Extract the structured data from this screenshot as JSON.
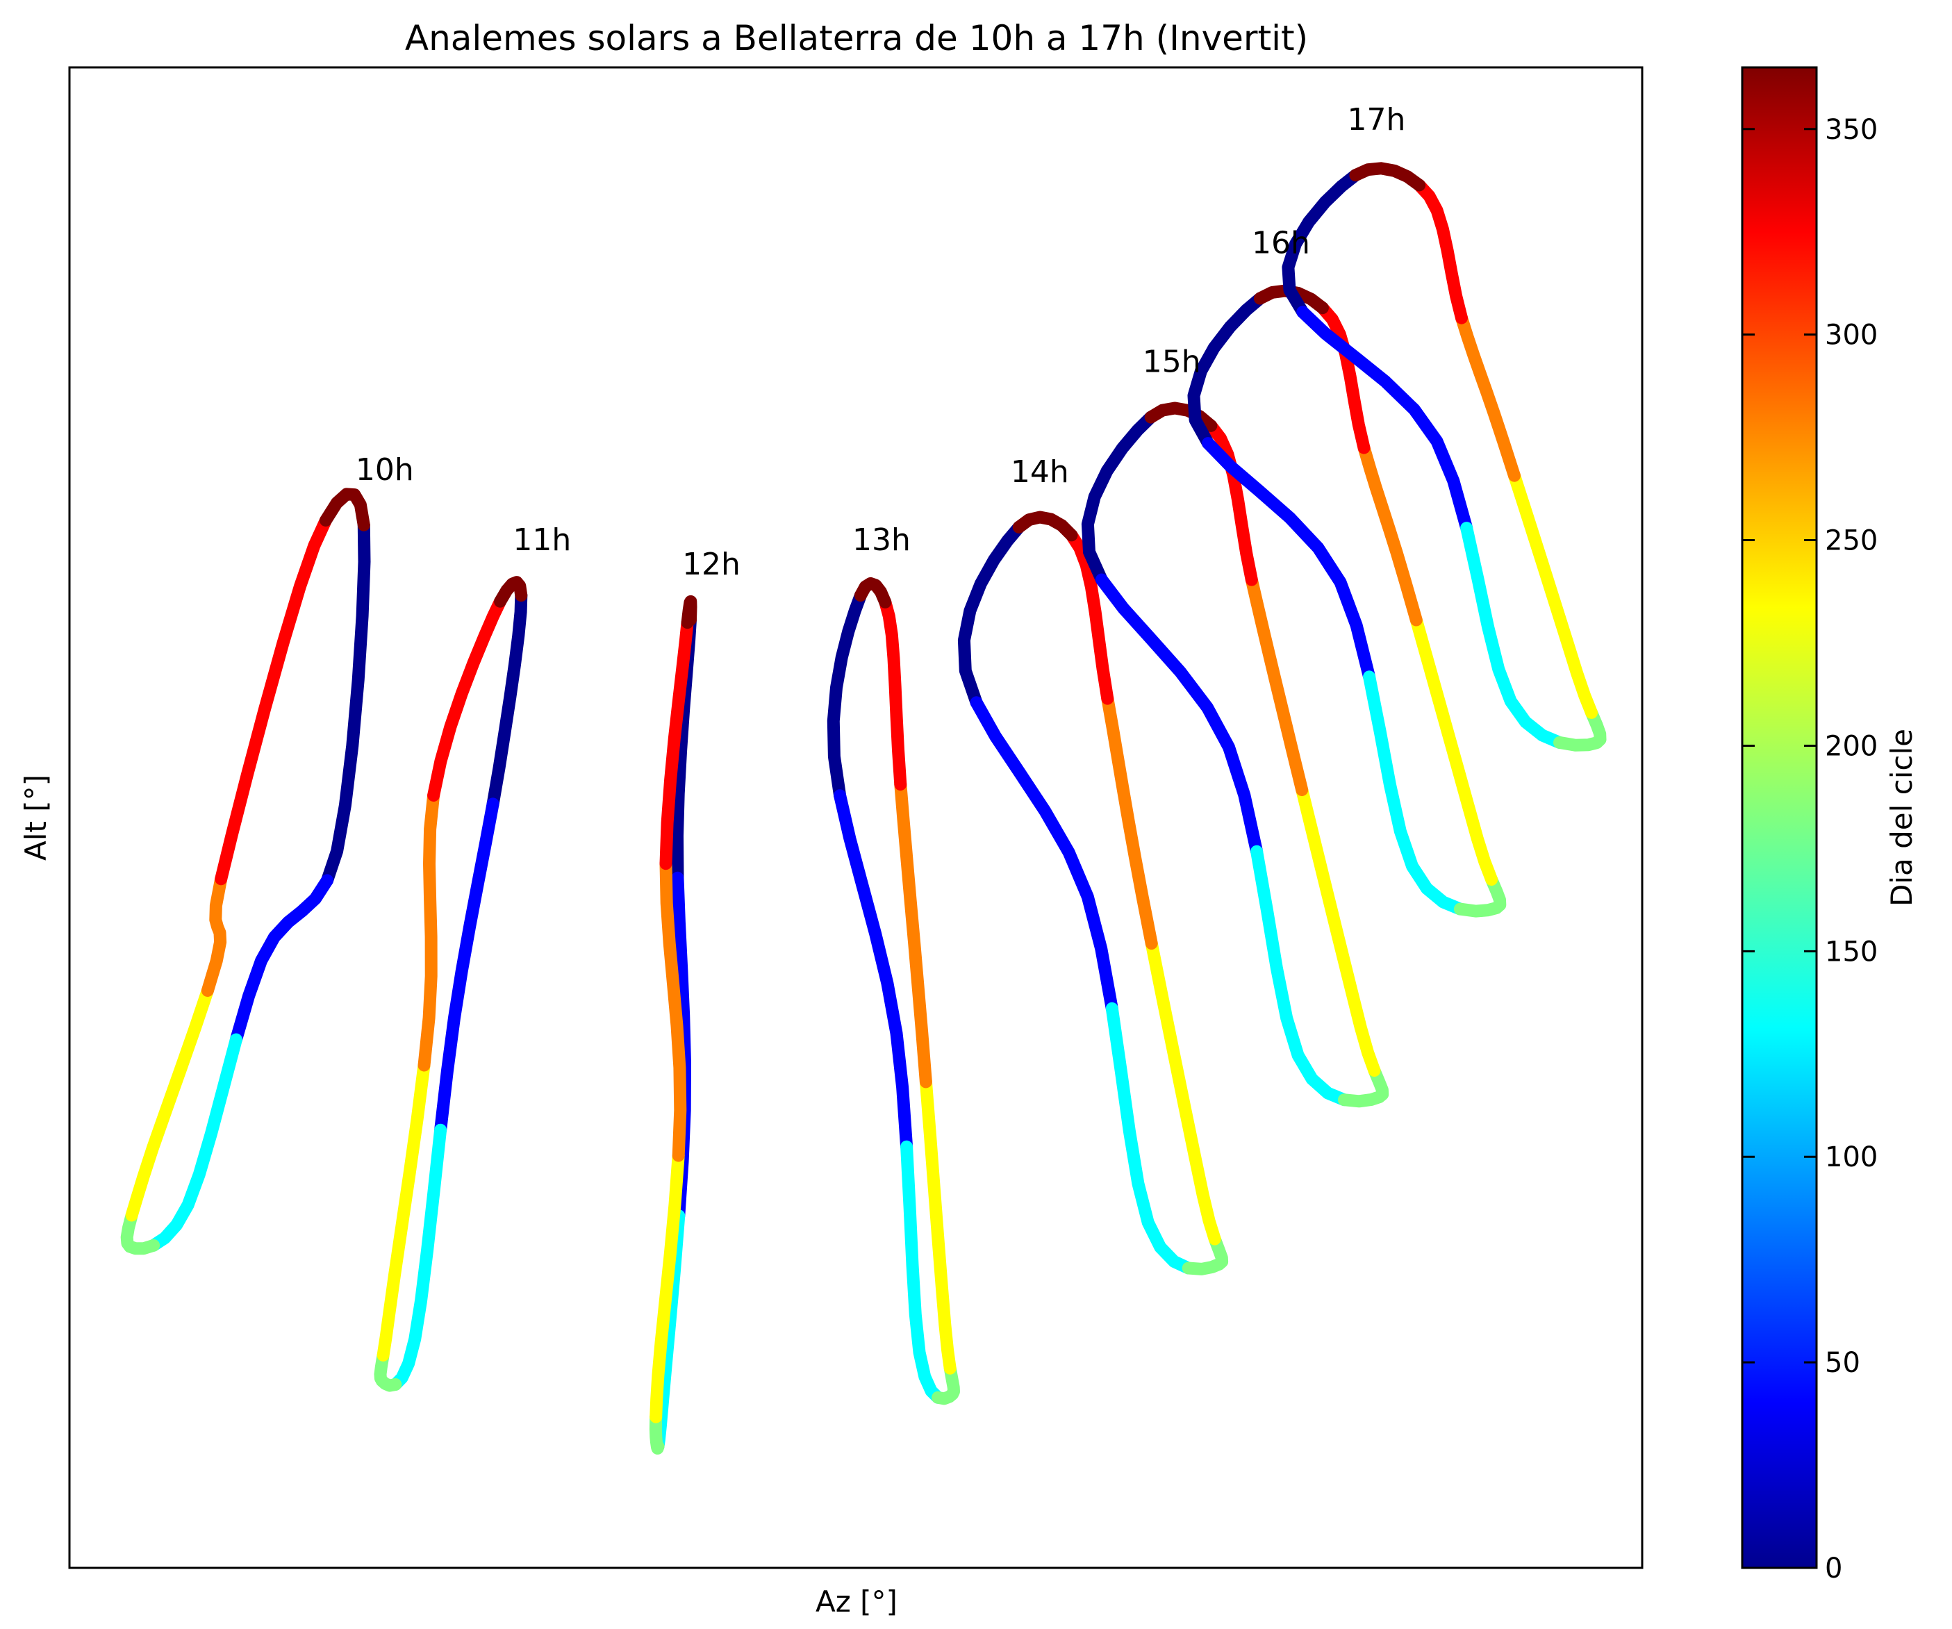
{
  "chart_data": {
    "type": "scatter",
    "title": "Analemes solars a Bellaterra de 10h a 17h (Invertit)",
    "xlabel": "Az [°]",
    "ylabel": "Alt [°]",
    "grid": false,
    "colorbar": {
      "label": "Dia del cicle",
      "colormap": "jet",
      "range": [
        0,
        365
      ],
      "ticks": [
        0,
        50,
        100,
        150,
        200,
        250,
        300,
        350
      ],
      "tick_labels": [
        "0",
        "50",
        "100",
        "150",
        "200",
        "250",
        "300",
        "350"
      ]
    },
    "series": [
      {
        "name": "10h",
        "day0_top": [
          133.5,
          60.2
        ],
        "southernmost": [
          126.0,
          47.9
        ],
        "northernmost": [
          107.8,
          27.4
        ],
        "equinox": [
          119.5,
          40.4
        ],
        "stroke_colors": [
          "#00008f",
          "#0000ff",
          "#00ffff",
          "#80ff80",
          "#ffff00",
          "#ff8000",
          "#ff0000",
          "#800000"
        ]
      },
      {
        "name": "11h",
        "day0_top": [
          150.8,
          57.0
        ],
        "southernmost": [
          145.8,
          51.7
        ],
        "northernmost": [
          135.5,
          21.3
        ],
        "equinox": [
          141.9,
          37.8
        ],
        "stroke_colors": [
          "#00008f",
          "#0000ff",
          "#00ffff",
          "#80ff80",
          "#ffff00",
          "#ff8000",
          "#ff0000",
          "#800000"
        ]
      },
      {
        "name": "12h",
        "day0_top": [
          169.4,
          55.9
        ],
        "southernmost": [
          167.5,
          48.6
        ],
        "northernmost": [
          165.7,
          18.4
        ],
        "equinox": [
          168.5,
          33.6
        ],
        "stroke_colors": [
          "#00008f",
          "#0000ff",
          "#00ffff",
          "#80ff80",
          "#ffff00",
          "#ff8000",
          "#ff0000",
          "#800000"
        ]
      },
      {
        "name": "13h",
        "day0_top": [
          188.1,
          57.0
        ],
        "southernmost": [
          187.8,
          52.2
        ],
        "northernmost": [
          198.2,
          20.7
        ],
        "equinox": [
          193.6,
          37.1
        ],
        "stroke_colors": [
          "#00008f",
          "#0000ff",
          "#00ffff",
          "#80ff80",
          "#ffff00",
          "#ff8000",
          "#ff0000",
          "#800000"
        ]
      },
      {
        "name": "14h",
        "day0_top": [
          205.5,
          60.1
        ],
        "southernmost": [
          205.2,
          56.1
        ],
        "northernmost": [
          227.5,
          26.6
        ],
        "equinox": [
          216.4,
          43.3
        ],
        "stroke_colors": [
          "#00008f",
          "#0000ff",
          "#00ffff",
          "#80ff80",
          "#ffff00",
          "#ff8000",
          "#ff0000",
          "#800000"
        ]
      },
      {
        "name": "15h",
        "day0_top": [
          220.0,
          65.1
        ],
        "southernmost": [
          219.6,
          61.5
        ],
        "northernmost": [
          245.1,
          34.2
        ],
        "equinox": [
          232.4,
          50.1
        ],
        "stroke_colors": [
          "#00008f",
          "#0000ff",
          "#00ffff",
          "#80ff80",
          "#ffff00",
          "#ff8000",
          "#ff0000",
          "#800000"
        ]
      },
      {
        "name": "16h",
        "day0_top": [
          232.0,
          70.5
        ],
        "southernmost": [
          231.5,
          67.5
        ],
        "northernmost": [
          258.0,
          42.8
        ],
        "equinox": [
          244.8,
          57.6
        ],
        "stroke_colors": [
          "#00008f",
          "#0000ff",
          "#00ffff",
          "#80ff80",
          "#ffff00",
          "#ff8000",
          "#ff0000",
          "#800000"
        ]
      },
      {
        "name": "17h",
        "day0_top": [
          242.5,
          76.1
        ],
        "southernmost": [
          242.0,
          73.4
        ],
        "northernmost": [
          269.0,
          50.3
        ],
        "equinox": [
          255.5,
          64.0
        ],
        "stroke_colors": [
          "#00008f",
          "#0000ff",
          "#00ffff",
          "#80ff80",
          "#ffff00",
          "#ff8000",
          "#ff0000",
          "#800000"
        ]
      }
    ]
  }
}
